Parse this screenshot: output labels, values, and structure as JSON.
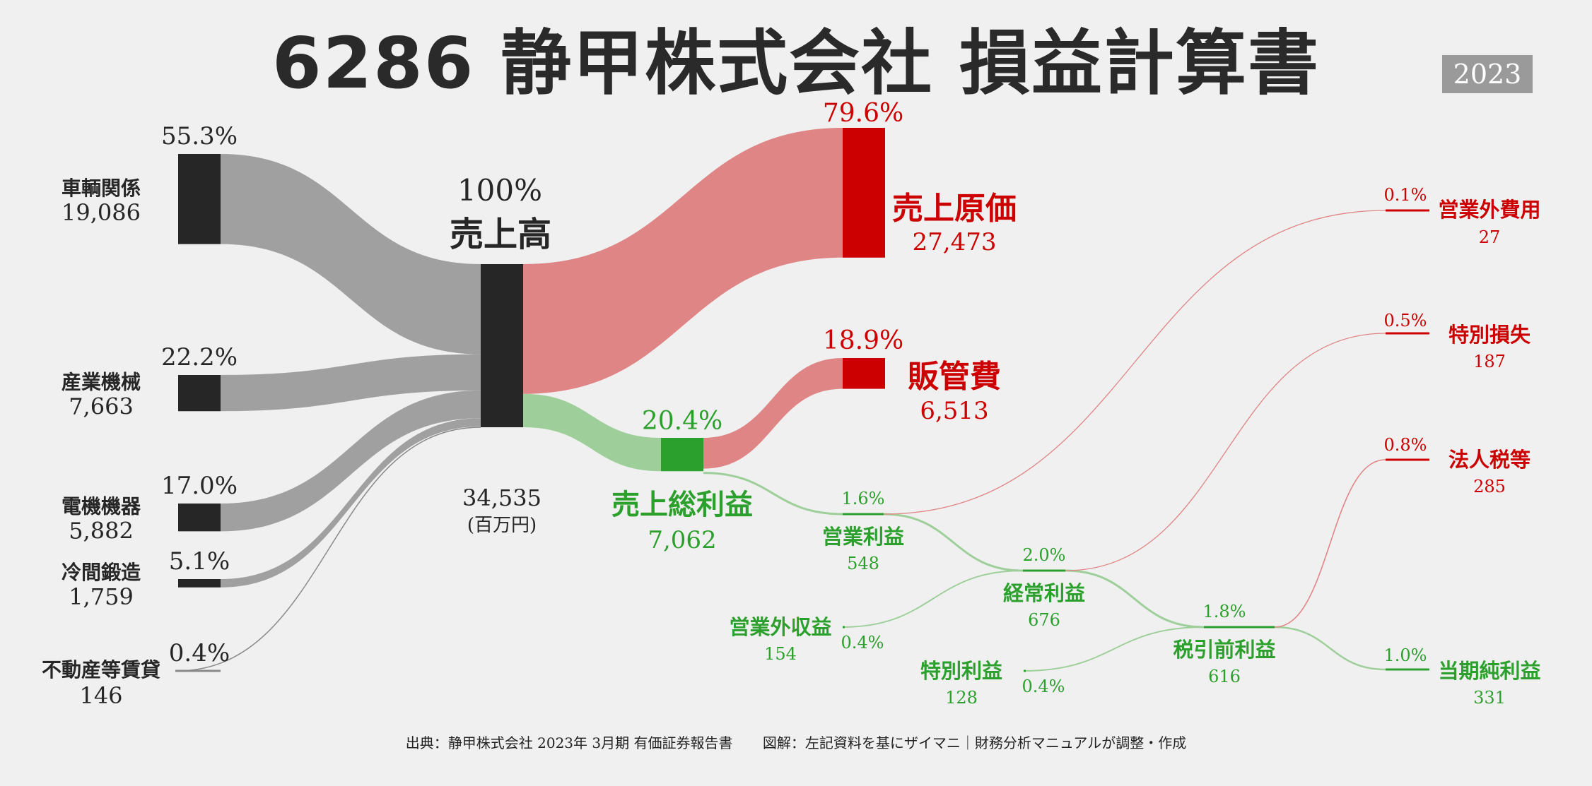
{
  "title": "6286 静甲株式会社 損益計算書",
  "year": "2023",
  "footer": {
    "source": "出典：静甲株式会社 2023年 3月期 有価証券報告書",
    "credit": "図解：左記資料を基にザイマニ｜財務分析マニュアルが調整・作成"
  },
  "colors": {
    "background": "#f0f0f0",
    "node_dark": "#262626",
    "flow_gray": "#a0a0a0",
    "cost_red": "#cc0000",
    "cost_flow": "#e08585",
    "profit_green": "#2ca02c",
    "profit_flow": "#9ecf9a"
  },
  "chart_data": {
    "type": "sankey",
    "unit": "(百万円)",
    "revenue_segments": [
      {
        "id": "seg1",
        "label": "車輌関係",
        "value": 19086,
        "value_text": "19,086",
        "pct": "55.3%"
      },
      {
        "id": "seg2",
        "label": "産業機械",
        "value": 7663,
        "value_text": "7,663",
        "pct": "22.2%"
      },
      {
        "id": "seg3",
        "label": "電機機器",
        "value": 5882,
        "value_text": "5,882",
        "pct": "17.0%"
      },
      {
        "id": "seg4",
        "label": "冷間鍛造",
        "value": 1759,
        "value_text": "1,759",
        "pct": "5.1%"
      },
      {
        "id": "seg5",
        "label": "不動産等賃貸",
        "value": 146,
        "value_text": "146",
        "pct": "0.4%"
      }
    ],
    "revenue": {
      "label": "売上高",
      "value": 34535,
      "value_text": "34,535",
      "pct": "100%"
    },
    "cogs": {
      "label": "売上原価",
      "value": 27473,
      "value_text": "27,473",
      "pct": "79.6%"
    },
    "sga": {
      "label": "販管費",
      "value": 6513,
      "value_text": "6,513",
      "pct": "18.9%"
    },
    "gross_profit": {
      "label": "売上総利益",
      "value": 7062,
      "value_text": "7,062",
      "pct": "20.4%"
    },
    "operating_profit": {
      "label": "営業利益",
      "value": 548,
      "value_text": "548",
      "pct": "1.6%"
    },
    "non_operating_income": {
      "label": "営業外収益",
      "value": 154,
      "value_text": "154",
      "pct": "0.4%"
    },
    "non_operating_expense": {
      "label": "営業外費用",
      "value": 27,
      "value_text": "27",
      "pct": "0.1%"
    },
    "ordinary_profit": {
      "label": "経常利益",
      "value": 676,
      "value_text": "676",
      "pct": "2.0%"
    },
    "extraordinary_income": {
      "label": "特別利益",
      "value": 128,
      "value_text": "128",
      "pct": "0.4%"
    },
    "extraordinary_loss": {
      "label": "特別損失",
      "value": 187,
      "value_text": "187",
      "pct": "0.5%"
    },
    "pretax_profit": {
      "label": "税引前利益",
      "value": 616,
      "value_text": "616",
      "pct": "1.8%"
    },
    "income_tax": {
      "label": "法人税等",
      "value": 285,
      "value_text": "285",
      "pct": "0.8%"
    },
    "net_income": {
      "label": "当期純利益",
      "value": 331,
      "value_text": "331",
      "pct": "1.0%"
    }
  }
}
